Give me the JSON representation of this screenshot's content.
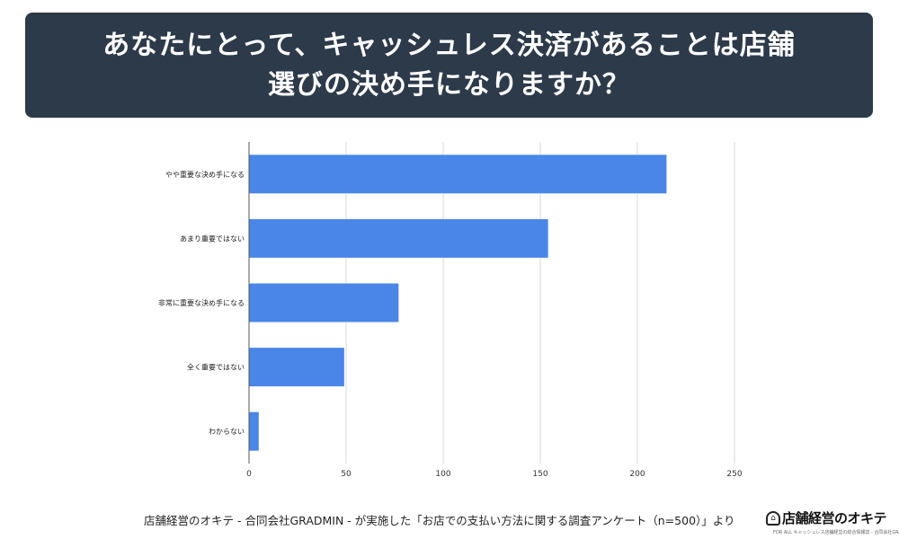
{
  "header": {
    "title_line1": "あなたにとって、キャッシュレス決済があることは店舗",
    "title_line2": "選びの決め手になりますか？"
  },
  "chart_data": {
    "type": "bar",
    "orientation": "horizontal",
    "categories": [
      "やや重要な決め手になる",
      "あまり重要ではない",
      "非常に重要な決め手になる",
      "全く重要ではない",
      "わからない"
    ],
    "values": [
      215,
      154,
      77,
      49,
      5
    ],
    "xlim": [
      0,
      250
    ],
    "xticks": [
      0,
      50,
      100,
      150,
      200,
      250
    ],
    "grid": "vertical",
    "bar_color": "#4a86e8",
    "title": "",
    "xlabel": "",
    "ylabel": ""
  },
  "footer": {
    "source": "店舗経営のオキテ - 合同会社GRADMIN - が実施した「お店での支払い方法に関する調査アンケート（n=500）」より"
  },
  "logo": {
    "text": "店舗経営のオキテ",
    "tagline": "FOR ALL キャッシュレス店舗経営の総合情報誌 - 合同会社GRADMIN -"
  }
}
